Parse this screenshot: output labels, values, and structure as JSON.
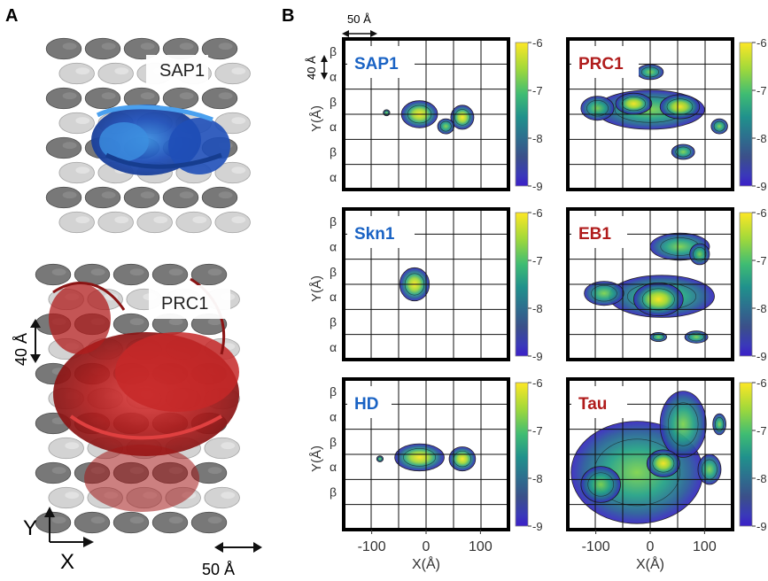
{
  "figure": {
    "panel_a_label": "A",
    "panel_b_label": "B",
    "panel_a": {
      "top_structure_label": "SAP1",
      "bottom_structure_label": "PRC1",
      "y_arrow_label": "40 Å",
      "axis_y_label": "Y",
      "axis_x_label": "X",
      "x_scale_label": "50 Å",
      "colors": {
        "sap1": "#1f4fb8",
        "prc1": "#b01c1c",
        "lattice_dark": "#555555",
        "lattice_light": "#c8c8c8"
      }
    },
    "panel_b": {
      "scale_x_label": "50 Å",
      "scale_y_label": "40 Å",
      "y_axis_label": "Y(Å)",
      "x_axis_label": "X(Å)",
      "x_ticks": [
        "-100",
        "0",
        "100"
      ],
      "colorbar_ticks": [
        "-6",
        "-7",
        "-8",
        "-9"
      ],
      "colorbar_colors": [
        "#fde725",
        "#a2d93a",
        "#3fbc73",
        "#20918c",
        "#2d6f8e",
        "#3b4f8a",
        "#3a3ab8",
        "#3b1fc9"
      ],
      "name_colors": {
        "blue": "#1a63c4",
        "red": "#b01c1c"
      },
      "maps": [
        {
          "name": "SAP1",
          "name_color": "blue",
          "y_labels": [
            "β",
            "α",
            "β",
            "α",
            "β",
            "α"
          ]
        },
        {
          "name": "PRC1",
          "name_color": "red",
          "y_labels": []
        },
        {
          "name": "Skn1",
          "name_color": "blue",
          "y_labels": [
            "β",
            "α",
            "β",
            "α",
            "β",
            "α"
          ]
        },
        {
          "name": "EB1",
          "name_color": "red",
          "y_labels": []
        },
        {
          "name": "HD",
          "name_color": "blue",
          "y_labels": [
            "β",
            "α",
            "β",
            "α",
            "β"
          ]
        },
        {
          "name": "Tau",
          "name_color": "red",
          "y_labels": []
        }
      ]
    }
  }
}
